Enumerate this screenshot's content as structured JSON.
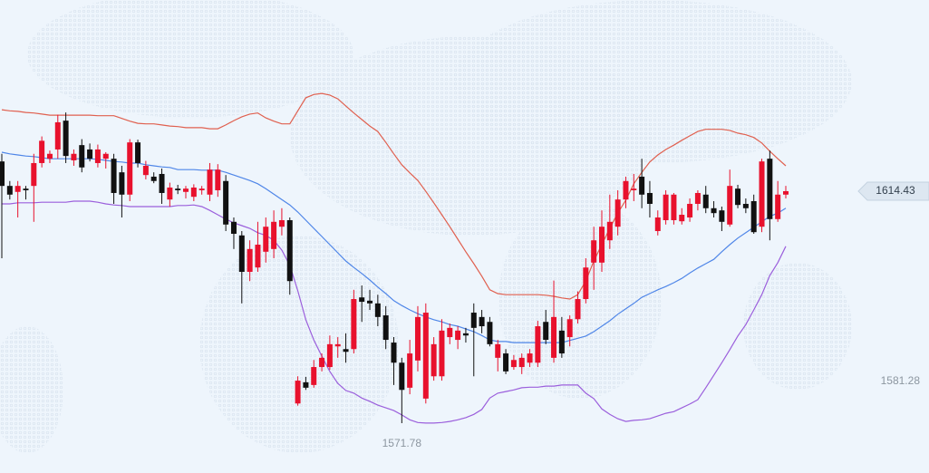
{
  "chart_data": {
    "type": "candlestick",
    "up_color": "#e8112d",
    "down_color": "#111111",
    "ylim": [
      1562.62,
      1649.58
    ],
    "yticks": [
      1581.28
    ],
    "open": [
      1619.9,
      1615.4,
      1614.3,
      1614.9,
      1615.4,
      1619.6,
      1620.4,
      1622.1,
      1627.4,
      1620.1,
      1622.9,
      1622.1,
      1619.6,
      1620.4,
      1620.4,
      1617.9,
      1613.8,
      1623.4,
      1617.4,
      1617.1,
      1617.6,
      1612.9,
      1614.9,
      1614.3,
      1613.4,
      1614.6,
      1613.8,
      1614.6,
      1616.3,
      1608.8,
      1606.3,
      1599.6,
      1600.4,
      1603.3,
      1603.8,
      1607.9,
      1609.1,
      1575.4,
      1579.3,
      1578.8,
      1582.1,
      1582.1,
      1585.9,
      1585.4,
      1585.4,
      1594.9,
      1594.3,
      1593.8,
      1591.6,
      1586.6,
      1582.9,
      1578.3,
      1583.3,
      1576.3,
      1580.4,
      1580.4,
      1587.6,
      1587.1,
      1588.3,
      1592.1,
      1591.3,
      1590.4,
      1583.8,
      1584.6,
      1582.1,
      1582.1,
      1582.9,
      1582.9,
      1590.4,
      1583.8,
      1588.8,
      1587.6,
      1590.9,
      1594.6,
      1601.3,
      1601.3,
      1605.4,
      1607.9,
      1612.9,
      1614.6,
      1617.1,
      1614.1,
      1607.1,
      1609.1,
      1609.1,
      1608.9,
      1609.6,
      1612.1,
      1613.8,
      1611.3,
      1610.9,
      1608.3,
      1614.9,
      1612.1,
      1612.6,
      1607.9,
      1620.4,
      1609.3,
      1613.8
    ],
    "high": [
      1621.3,
      1616.3,
      1616.3,
      1615.4,
      1621.3,
      1624.5,
      1621.9,
      1628.5,
      1628.9,
      1622.1,
      1624.0,
      1623.2,
      1623.0,
      1621.6,
      1621.3,
      1619.1,
      1624.0,
      1623.9,
      1620.0,
      1617.9,
      1618.6,
      1616.0,
      1615.6,
      1615.4,
      1615.7,
      1615.4,
      1619.6,
      1619.4,
      1617.4,
      1609.6,
      1607.1,
      1605.4,
      1608.8,
      1609.6,
      1610.9,
      1611.3,
      1609.6,
      1580.4,
      1580.3,
      1583.4,
      1584.6,
      1587.9,
      1587.6,
      1588.3,
      1596.3,
      1597.1,
      1596.3,
      1595.4,
      1593.3,
      1587.6,
      1583.8,
      1587.1,
      1593.3,
      1593.8,
      1587.6,
      1590.9,
      1590.1,
      1589.6,
      1589.3,
      1593.8,
      1592.6,
      1591.3,
      1587.1,
      1585.4,
      1584.3,
      1584.6,
      1585.4,
      1590.6,
      1592.6,
      1598.0,
      1591.3,
      1591.6,
      1596.0,
      1602.1,
      1607.9,
      1610.9,
      1613.8,
      1614.6,
      1617.1,
      1617.6,
      1620.4,
      1616.3,
      1610.9,
      1614.6,
      1614.1,
      1611.3,
      1613.1,
      1614.6,
      1615.4,
      1612.6,
      1611.6,
      1618.4,
      1615.6,
      1613.1,
      1613.8,
      1620.4,
      1621.9,
      1616.3,
      1615.4
    ],
    "low": [
      1602.1,
      1612.9,
      1609.6,
      1612.9,
      1608.8,
      1618.8,
      1619.6,
      1620.4,
      1619.6,
      1619.1,
      1617.9,
      1619.9,
      1618.8,
      1618.6,
      1612.1,
      1609.6,
      1612.6,
      1618.8,
      1616.6,
      1615.9,
      1612.1,
      1611.6,
      1613.9,
      1613.1,
      1612.6,
      1613.8,
      1612.6,
      1613.4,
      1607.1,
      1603.8,
      1593.8,
      1597.9,
      1599.6,
      1601.3,
      1602.1,
      1606.3,
      1595.4,
      1575.0,
      1577.9,
      1578.3,
      1581.3,
      1581.6,
      1583.8,
      1582.9,
      1584.6,
      1590.4,
      1592.6,
      1589.6,
      1585.4,
      1578.8,
      1571.78,
      1577.1,
      1581.3,
      1575.4,
      1579.6,
      1579.6,
      1586.3,
      1585.4,
      1586.6,
      1580.4,
      1588.3,
      1585.9,
      1581.3,
      1580.8,
      1581.6,
      1580.8,
      1582.1,
      1582.1,
      1586.3,
      1582.9,
      1583.8,
      1585.9,
      1590.1,
      1593.8,
      1596.3,
      1599.6,
      1603.8,
      1606.3,
      1611.3,
      1612.6,
      1611.3,
      1609.6,
      1606.3,
      1608.3,
      1608.3,
      1608.3,
      1608.8,
      1610.9,
      1610.4,
      1609.6,
      1607.1,
      1607.9,
      1611.3,
      1610.4,
      1606.6,
      1606.9,
      1605.4,
      1608.8,
      1613.1
    ],
    "close": [
      1615.4,
      1613.8,
      1615.4,
      1614.6,
      1619.6,
      1623.7,
      1621.3,
      1627.1,
      1620.9,
      1621.3,
      1618.8,
      1620.4,
      1622.1,
      1621.3,
      1614.1,
      1613.8,
      1623.4,
      1619.6,
      1619.1,
      1616.3,
      1614.1,
      1615.1,
      1614.6,
      1614.9,
      1615.1,
      1614.9,
      1618.4,
      1618.4,
      1608.3,
      1606.6,
      1599.6,
      1603.8,
      1604.6,
      1607.9,
      1608.8,
      1609.1,
      1597.9,
      1579.6,
      1578.3,
      1582.1,
      1583.8,
      1586.3,
      1586.3,
      1584.9,
      1594.6,
      1594.1,
      1593.8,
      1591.3,
      1587.1,
      1582.9,
      1577.9,
      1584.6,
      1591.3,
      1592.1,
      1586.3,
      1588.8,
      1589.3,
      1588.8,
      1587.9,
      1589.3,
      1589.6,
      1586.3,
      1586.3,
      1581.3,
      1583.4,
      1583.8,
      1584.6,
      1589.6,
      1587.1,
      1591.3,
      1584.6,
      1590.9,
      1594.6,
      1600.4,
      1605.4,
      1607.9,
      1608.8,
      1612.9,
      1616.3,
      1614.9,
      1613.8,
      1612.1,
      1609.6,
      1613.8,
      1613.8,
      1610.1,
      1612.1,
      1614.1,
      1611.3,
      1610.4,
      1608.8,
      1615.4,
      1611.9,
      1611.3,
      1606.9,
      1619.9,
      1609.3,
      1613.8,
      1614.43
    ],
    "bands": [
      {
        "color": "#e0604f",
        "values": [
          1629.4,
          1629.2,
          1629.1,
          1628.9,
          1628.8,
          1628.6,
          1628.4,
          1628.4,
          1628.4,
          1628.4,
          1628.4,
          1628.4,
          1628.3,
          1628.3,
          1628.3,
          1627.8,
          1627.3,
          1626.9,
          1626.8,
          1626.8,
          1626.6,
          1626.4,
          1626.3,
          1626.1,
          1626.1,
          1626.1,
          1625.9,
          1625.9,
          1626.6,
          1627.4,
          1628.1,
          1628.6,
          1628.8,
          1627.9,
          1627.3,
          1626.8,
          1626.8,
          1629.2,
          1631.6,
          1632.2,
          1632.4,
          1632.1,
          1631.4,
          1630.1,
          1628.8,
          1627.6,
          1626.4,
          1625.4,
          1623.4,
          1621.3,
          1619.3,
          1617.8,
          1616.4,
          1614.4,
          1612.3,
          1610.1,
          1607.9,
          1605.6,
          1603.3,
          1601.1,
          1598.8,
          1596.3,
          1595.6,
          1595.4,
          1595.4,
          1595.4,
          1595.4,
          1595.4,
          1595.3,
          1595.1,
          1594.8,
          1594.6,
          1595.4,
          1597.9,
          1601.6,
          1604.6,
          1607.6,
          1610.4,
          1612.8,
          1615.8,
          1617.9,
          1619.8,
          1621.1,
          1622.1,
          1622.9,
          1623.8,
          1624.6,
          1625.4,
          1625.8,
          1625.8,
          1625.8,
          1625.6,
          1625.1,
          1624.8,
          1624.3,
          1623.3,
          1621.8,
          1620.4,
          1619.1
        ]
      },
      {
        "color": "#4f86e8",
        "values": [
          1621.6,
          1621.3,
          1621.1,
          1620.9,
          1620.8,
          1620.6,
          1620.4,
          1620.4,
          1620.4,
          1620.4,
          1620.4,
          1620.4,
          1620.3,
          1620.1,
          1619.9,
          1619.8,
          1619.6,
          1619.6,
          1619.3,
          1619.1,
          1618.9,
          1618.8,
          1618.4,
          1618.4,
          1618.4,
          1618.3,
          1618.3,
          1618.3,
          1617.9,
          1617.4,
          1616.9,
          1616.4,
          1615.8,
          1614.9,
          1613.9,
          1612.9,
          1611.9,
          1610.6,
          1609.1,
          1607.6,
          1606.1,
          1604.6,
          1603.1,
          1601.6,
          1600.4,
          1599.3,
          1598.1,
          1596.8,
          1595.6,
          1594.3,
          1593.4,
          1592.6,
          1591.9,
          1591.3,
          1590.8,
          1590.4,
          1589.9,
          1589.6,
          1589.1,
          1588.6,
          1587.9,
          1587.1,
          1586.8,
          1586.8,
          1586.6,
          1586.6,
          1586.6,
          1586.6,
          1586.6,
          1586.6,
          1586.6,
          1587.0,
          1587.4,
          1587.8,
          1588.6,
          1589.6,
          1590.6,
          1591.8,
          1592.8,
          1593.8,
          1594.9,
          1595.6,
          1596.3,
          1596.9,
          1597.6,
          1598.4,
          1599.4,
          1600.3,
          1601.1,
          1601.9,
          1603.3,
          1604.6,
          1605.8,
          1606.8,
          1607.8,
          1608.8,
          1609.8,
          1610.4,
          1611.3
        ]
      },
      {
        "color": "#9b5fdc",
        "values": [
          1612.1,
          1612.1,
          1612.3,
          1612.3,
          1612.3,
          1612.4,
          1612.4,
          1612.4,
          1612.4,
          1612.6,
          1612.6,
          1612.6,
          1612.4,
          1612.1,
          1611.9,
          1611.8,
          1611.6,
          1611.6,
          1611.6,
          1611.6,
          1611.6,
          1611.6,
          1611.8,
          1611.8,
          1611.9,
          1611.6,
          1610.9,
          1610.1,
          1609.3,
          1608.6,
          1608.1,
          1607.6,
          1606.8,
          1606.3,
          1605.4,
          1603.6,
          1600.8,
          1596.1,
          1590.8,
          1587.1,
          1584.1,
          1581.3,
          1579.1,
          1577.8,
          1577.3,
          1576.4,
          1575.8,
          1575.1,
          1574.6,
          1574.1,
          1573.3,
          1572.4,
          1571.9,
          1571.8,
          1571.8,
          1571.9,
          1572.1,
          1572.4,
          1572.8,
          1573.4,
          1574.3,
          1576.4,
          1577.3,
          1577.6,
          1577.9,
          1578.3,
          1578.4,
          1578.4,
          1578.6,
          1578.6,
          1578.8,
          1578.8,
          1578.8,
          1577.3,
          1576.3,
          1574.4,
          1573.4,
          1572.6,
          1572.1,
          1572.3,
          1572.4,
          1572.6,
          1573.1,
          1573.6,
          1573.9,
          1574.6,
          1575.3,
          1576.1,
          1578.3,
          1580.6,
          1582.9,
          1585.3,
          1587.8,
          1589.9,
          1592.6,
          1595.4,
          1598.9,
          1601.3,
          1604.3
        ]
      }
    ]
  }
}
